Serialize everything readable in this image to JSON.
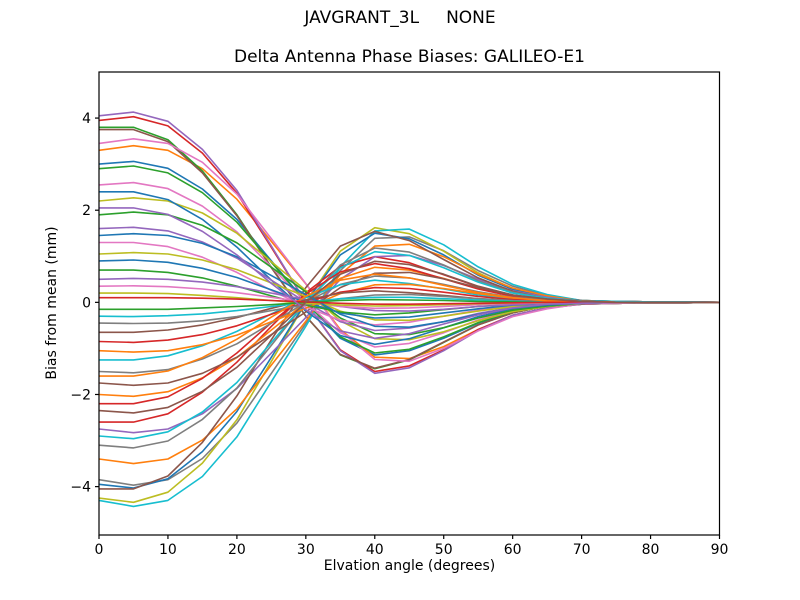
{
  "chart_data": {
    "type": "line",
    "suptitle": "JAVGRANT_3L     NONE",
    "title": "Delta Antenna Phase Biases: GALILEO-E1",
    "xlabel": "Elvation angle (degrees)",
    "ylabel": "Bias from mean (mm)",
    "grid": false,
    "legend": "none",
    "xlim": [
      0,
      90
    ],
    "ylim": [
      -5.05,
      5.0
    ],
    "xticks": [
      0,
      10,
      20,
      30,
      40,
      50,
      60,
      70,
      80,
      90
    ],
    "xtick_labels": [
      "0",
      "10",
      "20",
      "30",
      "40",
      "50",
      "60",
      "70",
      "80",
      "90"
    ],
    "yticks": [
      -4,
      -2,
      0,
      2,
      4
    ],
    "ytick_labels": [
      "−4",
      "−2",
      "0",
      "2",
      "4"
    ],
    "line_width": 1.6,
    "palette": {
      "C0": "#1f77b4",
      "C1": "#ff7f0e",
      "C2": "#2ca02c",
      "C3": "#d62728",
      "C4": "#9467bd",
      "C5": "#8c564b",
      "C6": "#e377c2",
      "C7": "#7f7f7f",
      "C8": "#bcbd22",
      "C9": "#17becf"
    },
    "x": [
      0,
      5,
      10,
      15,
      20,
      25,
      30,
      35,
      40,
      45,
      50,
      55,
      60,
      65,
      70,
      75,
      80,
      85,
      90
    ],
    "series": [
      {
        "color": "C0",
        "values": [
          3.0,
          3.06,
          2.91,
          2.46,
          1.8,
          0.9,
          0.0,
          -0.78,
          -1.14,
          -1.05,
          -0.78,
          -0.45,
          -0.21,
          -0.09,
          -0.03,
          -0.02,
          -0.01,
          -0.01,
          0.0
        ]
      },
      {
        "color": "C1",
        "values": [
          3.3,
          3.4,
          3.3,
          2.9,
          2.24,
          1.32,
          0.4,
          -0.59,
          -1.19,
          -1.22,
          -0.96,
          -0.59,
          -0.3,
          -0.13,
          -0.03,
          -0.02,
          -0.01,
          -0.01,
          0.0
        ]
      },
      {
        "color": "C2",
        "values": [
          3.8,
          3.8,
          3.53,
          2.85,
          1.9,
          0.76,
          -0.3,
          -1.14,
          -1.44,
          -1.25,
          -0.87,
          -0.49,
          -0.23,
          -0.08,
          -0.04,
          -0.02,
          -0.01,
          -0.01,
          0.0
        ]
      },
      {
        "color": "C3",
        "values": [
          3.95,
          4.03,
          3.83,
          3.24,
          2.37,
          1.19,
          0.0,
          -1.03,
          -1.5,
          -1.38,
          -1.03,
          -0.59,
          -0.28,
          -0.12,
          -0.04,
          -0.02,
          -0.01,
          -0.01,
          0.0
        ]
      },
      {
        "color": "C4",
        "values": [
          4.05,
          4.13,
          3.93,
          3.32,
          2.43,
          1.22,
          0.0,
          -1.05,
          -1.54,
          -1.42,
          -1.05,
          -0.61,
          -0.28,
          -0.12,
          -0.04,
          -0.02,
          -0.01,
          -0.01,
          0.0
        ]
      },
      {
        "color": "C5",
        "values": [
          3.75,
          3.75,
          3.49,
          2.81,
          1.88,
          0.75,
          -0.3,
          -1.13,
          -1.43,
          -1.24,
          -0.86,
          -0.49,
          -0.23,
          -0.08,
          -0.04,
          -0.02,
          -0.01,
          -0.01,
          0.0
        ]
      },
      {
        "color": "C6",
        "values": [
          3.45,
          3.55,
          3.45,
          3.04,
          2.35,
          1.38,
          0.41,
          -0.62,
          -1.24,
          -1.28,
          -1.0,
          -0.62,
          -0.31,
          -0.14,
          -0.03,
          -0.02,
          -0.01,
          -0.01,
          0.0
        ]
      },
      {
        "color": "C7",
        "values": [
          -3.85,
          -3.97,
          -3.85,
          -3.39,
          -2.62,
          -1.54,
          -0.46,
          0.69,
          1.39,
          1.42,
          1.12,
          0.69,
          0.35,
          0.15,
          0.04,
          0.02,
          0.01,
          0.01,
          0.0
        ]
      },
      {
        "color": "C8",
        "values": [
          -4.25,
          -4.34,
          -4.12,
          -3.49,
          -2.55,
          -1.28,
          0.0,
          1.11,
          1.62,
          1.49,
          1.11,
          0.64,
          0.3,
          0.13,
          0.04,
          0.02,
          0.01,
          0.01,
          0.0
        ]
      },
      {
        "color": "C9",
        "values": [
          -4.3,
          -4.43,
          -4.3,
          -3.78,
          -2.92,
          -1.72,
          -0.52,
          0.77,
          1.55,
          1.59,
          1.25,
          0.77,
          0.39,
          0.17,
          0.04,
          0.02,
          0.01,
          0.01,
          0.0
        ]
      },
      {
        "color": "C0",
        "values": [
          -3.95,
          -4.03,
          -3.83,
          -3.24,
          -2.37,
          -1.19,
          0.0,
          1.03,
          1.5,
          1.38,
          1.03,
          0.59,
          0.28,
          0.12,
          0.04,
          0.02,
          0.01,
          0.01,
          0.0
        ]
      },
      {
        "color": "C1",
        "values": [
          -3.4,
          -3.5,
          -3.4,
          -2.99,
          -2.31,
          -1.36,
          -0.41,
          0.61,
          1.22,
          1.26,
          0.99,
          0.61,
          0.31,
          0.14,
          0.03,
          0.02,
          0.01,
          0.01,
          0.0
        ]
      },
      {
        "color": "C2",
        "values": [
          2.9,
          2.96,
          2.81,
          2.38,
          1.74,
          0.87,
          0.0,
          -0.75,
          -1.1,
          -1.02,
          -0.75,
          -0.44,
          -0.2,
          -0.09,
          -0.03,
          -0.02,
          -0.01,
          -0.01,
          0.0
        ]
      },
      {
        "color": "C3",
        "values": [
          -2.6,
          -2.6,
          -2.42,
          -1.95,
          -1.3,
          -0.52,
          0.21,
          0.78,
          0.99,
          0.86,
          0.6,
          0.34,
          0.16,
          0.05,
          0.03,
          0.02,
          0.01,
          0.01,
          0.0
        ]
      },
      {
        "color": "C4",
        "values": [
          -2.75,
          -2.83,
          -2.75,
          -2.42,
          -1.87,
          -1.1,
          -0.33,
          0.5,
          0.99,
          1.02,
          0.8,
          0.5,
          0.25,
          0.11,
          0.03,
          0.02,
          0.01,
          0.01,
          0.0
        ]
      },
      {
        "color": "C5",
        "values": [
          -4.05,
          -4.05,
          -3.77,
          -3.04,
          -2.03,
          -0.81,
          0.32,
          1.22,
          1.54,
          1.34,
          0.93,
          0.53,
          0.24,
          0.08,
          0.04,
          0.02,
          0.01,
          0.01,
          0.0
        ]
      },
      {
        "color": "C6",
        "values": [
          2.55,
          2.6,
          2.47,
          2.09,
          1.53,
          0.77,
          0.0,
          -0.66,
          -0.97,
          -0.89,
          -0.66,
          -0.38,
          -0.18,
          -0.08,
          -0.03,
          -0.02,
          -0.01,
          -0.01,
          0.0
        ]
      },
      {
        "color": "C7",
        "values": [
          -3.1,
          -3.16,
          -3.01,
          -2.54,
          -1.86,
          -0.93,
          0.0,
          0.81,
          1.18,
          1.09,
          0.81,
          0.47,
          0.22,
          0.09,
          0.03,
          0.02,
          0.01,
          0.01,
          0.0
        ]
      },
      {
        "color": "C8",
        "values": [
          2.2,
          2.27,
          2.2,
          1.94,
          1.5,
          0.88,
          0.26,
          -0.4,
          -0.79,
          -0.81,
          -0.64,
          -0.4,
          -0.2,
          -0.09,
          -0.02,
          0.0,
          0.0,
          0.0,
          0.0
        ]
      },
      {
        "color": "C9",
        "values": [
          -2.9,
          -2.96,
          -2.81,
          -2.38,
          -1.74,
          -0.87,
          0.0,
          0.75,
          1.1,
          1.02,
          0.75,
          0.44,
          0.2,
          0.09,
          0.03,
          0.02,
          0.01,
          0.01,
          0.0
        ]
      },
      {
        "color": "C0",
        "values": [
          2.4,
          2.4,
          2.23,
          1.8,
          1.2,
          0.48,
          -0.19,
          -0.72,
          -0.91,
          -0.79,
          -0.55,
          -0.31,
          -0.14,
          -0.05,
          -0.02,
          0.0,
          0.0,
          0.0,
          0.0
        ]
      },
      {
        "color": "C1",
        "values": [
          -2.0,
          -2.04,
          -1.94,
          -1.64,
          -1.2,
          -0.6,
          0.0,
          0.52,
          0.76,
          0.7,
          0.52,
          0.3,
          0.14,
          0.06,
          0.02,
          0.0,
          0.0,
          0.0,
          0.0
        ]
      },
      {
        "color": "C2",
        "values": [
          1.9,
          1.96,
          1.9,
          1.67,
          1.29,
          0.76,
          0.23,
          -0.34,
          -0.68,
          -0.7,
          -0.55,
          -0.34,
          -0.17,
          -0.08,
          -0.02,
          0.0,
          0.0,
          0.0,
          0.0
        ]
      },
      {
        "color": "C3",
        "values": [
          -2.2,
          -2.2,
          -2.05,
          -1.65,
          -1.1,
          -0.44,
          0.18,
          0.66,
          0.84,
          0.73,
          0.51,
          0.29,
          0.13,
          0.04,
          0.02,
          0.0,
          0.0,
          0.0,
          0.0
        ]
      },
      {
        "color": "C4",
        "values": [
          1.6,
          1.63,
          1.55,
          1.31,
          0.96,
          0.48,
          0.0,
          -0.42,
          -0.61,
          -0.56,
          -0.42,
          -0.24,
          -0.11,
          -0.05,
          -0.02,
          0.0,
          0.0,
          0.0,
          0.0
        ]
      },
      {
        "color": "C5",
        "values": [
          -1.75,
          -1.8,
          -1.75,
          -1.54,
          -1.19,
          -0.7,
          -0.21,
          0.32,
          0.63,
          0.65,
          0.51,
          0.32,
          0.16,
          0.07,
          0.02,
          0.0,
          0.0,
          0.0,
          0.0
        ]
      },
      {
        "color": "C6",
        "values": [
          1.3,
          1.3,
          1.21,
          0.98,
          0.65,
          0.26,
          -0.1,
          -0.39,
          -0.49,
          -0.43,
          -0.3,
          -0.17,
          -0.08,
          -0.03,
          -0.01,
          0.0,
          0.0,
          0.0,
          0.0
        ]
      },
      {
        "color": "C7",
        "values": [
          -1.5,
          -1.53,
          -1.46,
          -1.23,
          -0.9,
          -0.45,
          0.0,
          0.39,
          0.57,
          0.53,
          0.39,
          0.23,
          0.11,
          0.05,
          0.02,
          0.0,
          0.0,
          0.0,
          0.0
        ]
      },
      {
        "color": "C8",
        "values": [
          1.05,
          1.08,
          1.05,
          0.92,
          0.71,
          0.42,
          0.13,
          -0.19,
          -0.38,
          -0.39,
          -0.3,
          -0.19,
          -0.09,
          -0.04,
          -0.01,
          0.0,
          0.0,
          0.0,
          0.0
        ]
      },
      {
        "color": "C9",
        "values": [
          -1.25,
          -1.25,
          -1.16,
          -0.94,
          -0.63,
          -0.25,
          0.1,
          0.38,
          0.48,
          0.41,
          0.29,
          0.16,
          0.08,
          0.03,
          0.01,
          0.0,
          0.0,
          0.0,
          0.0
        ]
      },
      {
        "color": "C0",
        "values": [
          0.9,
          0.92,
          0.87,
          0.74,
          0.54,
          0.27,
          0.0,
          -0.23,
          -0.34,
          -0.32,
          -0.23,
          -0.14,
          -0.06,
          -0.03,
          -0.01,
          0.0,
          0.0,
          0.0,
          0.0
        ]
      },
      {
        "color": "C1",
        "values": [
          -1.05,
          -1.08,
          -1.05,
          -0.92,
          -0.71,
          -0.42,
          -0.13,
          0.19,
          0.38,
          0.39,
          0.3,
          0.19,
          0.09,
          0.04,
          0.01,
          0.0,
          0.0,
          0.0,
          0.0
        ]
      },
      {
        "color": "C2",
        "values": [
          0.7,
          0.7,
          0.65,
          0.53,
          0.35,
          0.14,
          -0.06,
          -0.21,
          -0.27,
          -0.23,
          -0.16,
          -0.09,
          -0.04,
          -0.01,
          -0.01,
          0.0,
          0.0,
          0.0,
          0.0
        ]
      },
      {
        "color": "C3",
        "values": [
          -0.85,
          -0.87,
          -0.82,
          -0.7,
          -0.51,
          -0.26,
          0.0,
          0.22,
          0.32,
          0.3,
          0.22,
          0.13,
          0.06,
          0.03,
          0.01,
          0.0,
          0.0,
          0.0,
          0.0
        ]
      },
      {
        "color": "C4",
        "values": [
          0.5,
          0.52,
          0.5,
          0.44,
          0.34,
          0.2,
          0.06,
          -0.09,
          -0.18,
          -0.19,
          -0.15,
          -0.09,
          -0.05,
          -0.02,
          -0.01,
          0.0,
          0.0,
          0.0,
          0.0
        ]
      },
      {
        "color": "C5",
        "values": [
          -0.65,
          -0.65,
          -0.6,
          -0.49,
          -0.33,
          -0.13,
          0.05,
          0.2,
          0.25,
          0.21,
          0.15,
          0.08,
          0.04,
          0.01,
          0.01,
          0.0,
          0.0,
          0.0,
          0.0
        ]
      },
      {
        "color": "C6",
        "values": [
          0.35,
          0.36,
          0.34,
          0.29,
          0.21,
          0.11,
          0.0,
          -0.09,
          -0.13,
          -0.12,
          -0.09,
          -0.05,
          -0.02,
          -0.01,
          0.0,
          0.0,
          0.0,
          0.0,
          0.0
        ]
      },
      {
        "color": "C7",
        "values": [
          -0.45,
          -0.46,
          -0.45,
          -0.4,
          -0.31,
          -0.18,
          -0.05,
          0.08,
          0.16,
          0.17,
          0.13,
          0.08,
          0.04,
          0.02,
          0.0,
          0.0,
          0.0,
          0.0,
          0.0
        ]
      },
      {
        "color": "C8",
        "values": [
          0.2,
          0.2,
          0.19,
          0.15,
          0.1,
          0.04,
          -0.02,
          -0.06,
          -0.08,
          -0.07,
          -0.05,
          -0.03,
          -0.01,
          0.0,
          0.0,
          0.0,
          0.0,
          0.0,
          0.0
        ]
      },
      {
        "color": "C9",
        "values": [
          -0.3,
          -0.31,
          -0.29,
          -0.25,
          -0.18,
          -0.09,
          0.0,
          0.08,
          0.11,
          0.11,
          0.08,
          0.05,
          0.02,
          0.01,
          0.0,
          0.0,
          0.0,
          0.0,
          0.0
        ]
      },
      {
        "color": "C0",
        "values": [
          1.45,
          1.49,
          1.45,
          1.28,
          0.99,
          0.58,
          0.17,
          -0.26,
          -0.52,
          -0.54,
          -0.42,
          -0.26,
          -0.13,
          -0.06,
          -0.01,
          0.0,
          0.0,
          0.0,
          0.0
        ]
      },
      {
        "color": "C1",
        "values": [
          -1.6,
          -1.6,
          -1.49,
          -1.2,
          -0.8,
          -0.32,
          0.13,
          0.48,
          0.61,
          0.53,
          0.37,
          0.21,
          0.1,
          0.03,
          0.02,
          0.0,
          0.0,
          0.0,
          0.0
        ]
      },
      {
        "color": "C2",
        "values": [
          -0.15,
          -0.15,
          -0.15,
          -0.12,
          -0.09,
          -0.05,
          0.0,
          0.04,
          0.06,
          0.05,
          0.04,
          0.02,
          0.01,
          0.0,
          0.0,
          0.0,
          0.0,
          0.0,
          0.0
        ]
      },
      {
        "color": "C3",
        "values": [
          0.1,
          0.1,
          0.1,
          0.09,
          0.07,
          0.04,
          0.01,
          -0.02,
          -0.04,
          -0.04,
          -0.03,
          -0.02,
          -0.01,
          0.0,
          0.0,
          0.0,
          0.0,
          0.0,
          0.0
        ]
      },
      {
        "color": "C4",
        "values": [
          2.05,
          2.05,
          1.91,
          1.54,
          1.03,
          0.41,
          -0.16,
          -0.62,
          -0.78,
          -0.68,
          -0.47,
          -0.27,
          -0.12,
          -0.04,
          -0.02,
          0.0,
          0.0,
          0.0,
          0.0
        ]
      },
      {
        "color": "C5",
        "values": [
          -2.35,
          -2.4,
          -2.28,
          -1.93,
          -1.41,
          -0.71,
          0.0,
          0.61,
          0.89,
          0.82,
          0.61,
          0.35,
          0.16,
          0.07,
          0.02,
          0.0,
          0.0,
          0.0,
          0.0
        ]
      }
    ]
  }
}
